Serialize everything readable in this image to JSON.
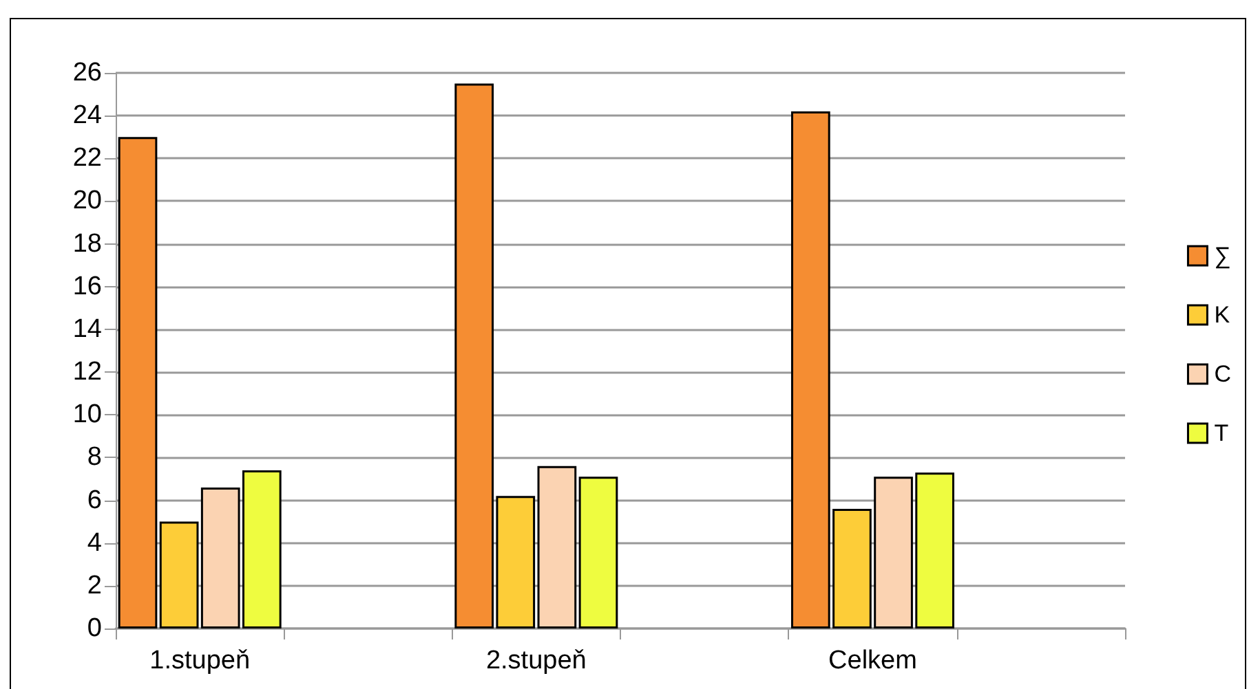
{
  "chart_data": {
    "type": "bar",
    "categories": [
      "1.stupeň",
      null,
      "2.stupeň",
      null,
      "Celkem",
      null
    ],
    "series": [
      {
        "name": "∑",
        "color": "#f58d32",
        "values": [
          23.0,
          null,
          25.5,
          null,
          24.2,
          null
        ]
      },
      {
        "name": "K",
        "color": "#fdcd38",
        "values": [
          5.0,
          null,
          6.2,
          null,
          5.6,
          null
        ]
      },
      {
        "name": "C",
        "color": "#fbd3b2",
        "values": [
          6.6,
          null,
          7.6,
          null,
          7.1,
          null
        ]
      },
      {
        "name": "T",
        "color": "#eefc40",
        "values": [
          7.4,
          null,
          7.1,
          null,
          7.3,
          null
        ]
      }
    ],
    "ylim": [
      0,
      26
    ],
    "yticks": [
      0,
      2,
      4,
      6,
      8,
      10,
      12,
      14,
      16,
      18,
      20,
      22,
      24,
      26
    ],
    "grid": "y",
    "legend": "right"
  }
}
